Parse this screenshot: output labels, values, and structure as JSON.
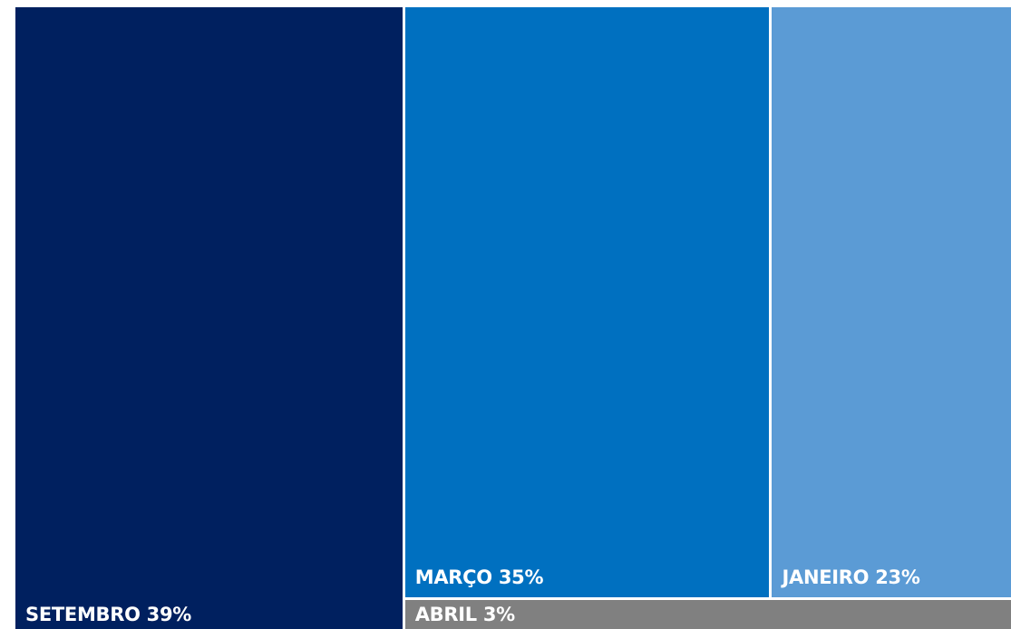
{
  "chart_data": {
    "type": "treemap",
    "items": [
      {
        "label": "SETEMBRO 39%",
        "category": "SETEMBRO",
        "value": 39,
        "color": "#00205f"
      },
      {
        "label": "MARÇO 35%",
        "category": "MARÇO",
        "value": 35,
        "color": "#0070c0"
      },
      {
        "label": "JANEIRO 23%",
        "category": "JANEIRO",
        "value": 23,
        "color": "#5b9bd5"
      },
      {
        "label": "ABRIL 3%",
        "category": "ABRIL",
        "value": 3,
        "color": "#808080"
      }
    ]
  }
}
